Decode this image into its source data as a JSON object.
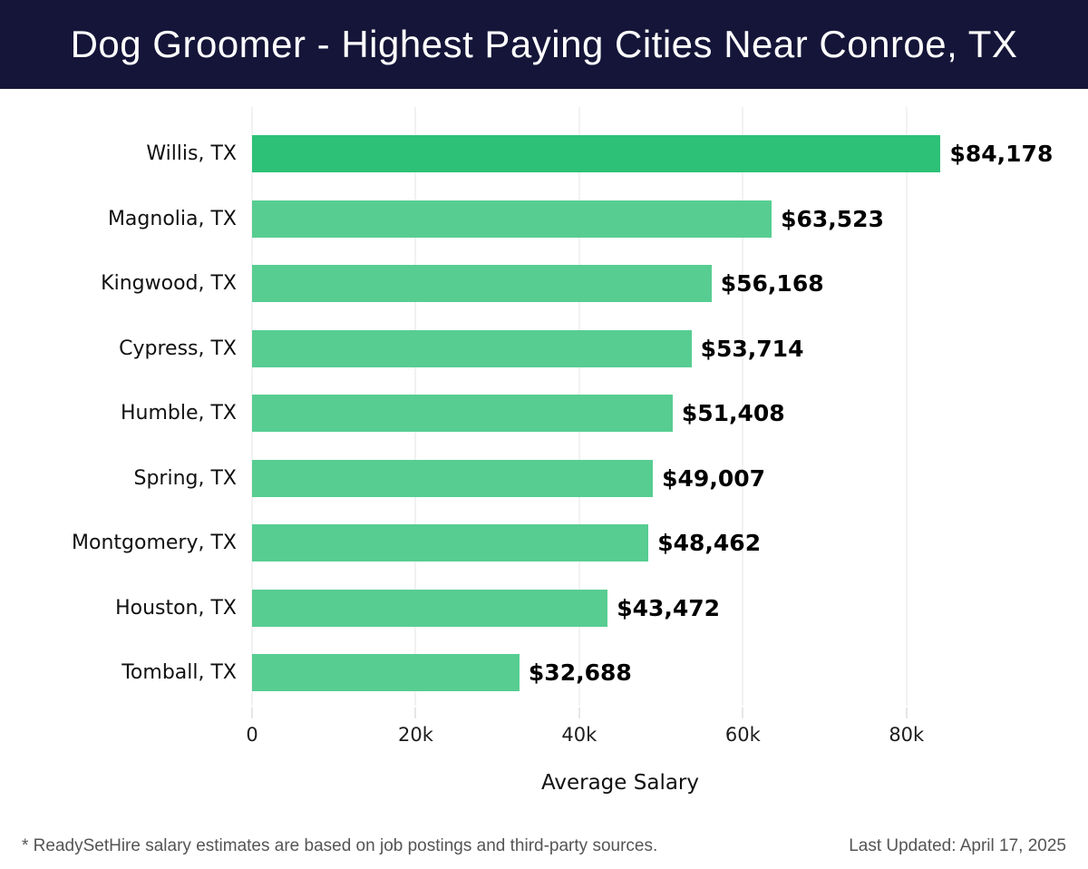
{
  "header": {
    "title": "Dog Groomer - Highest Paying Cities Near Conroe, TX"
  },
  "chart_data": {
    "type": "bar",
    "orientation": "horizontal",
    "title": "Dog Groomer - Highest Paying Cities Near Conroe, TX",
    "categories": [
      "Willis, TX",
      "Magnolia, TX",
      "Kingwood, TX",
      "Cypress, TX",
      "Humble, TX",
      "Spring, TX",
      "Montgomery, TX",
      "Houston, TX",
      "Tomball, TX"
    ],
    "values": [
      84178,
      63523,
      56168,
      53714,
      51408,
      49007,
      48462,
      43472,
      32688
    ],
    "value_labels": [
      "$84,178",
      "$63,523",
      "$56,168",
      "$53,714",
      "$51,408",
      "$49,007",
      "$48,462",
      "$43,472",
      "$32,688"
    ],
    "xlabel": "Average Salary",
    "xlim": [
      0,
      90000
    ],
    "xticks": [
      {
        "value": 0,
        "label": "0"
      },
      {
        "value": 20000,
        "label": "20k"
      },
      {
        "value": 40000,
        "label": "40k"
      },
      {
        "value": 60000,
        "label": "60k"
      },
      {
        "value": 80000,
        "label": "80k"
      }
    ],
    "grid": true,
    "legend": false,
    "colors": {
      "highlight_bar": "#2dc177",
      "bar": "#57cd92",
      "gridline": "#e4e4e4",
      "header_bg": "#151539"
    }
  },
  "footer": {
    "note": "* ReadySetHire salary estimates are based on job postings and third-party sources.",
    "last_updated": "Last Updated: April 17, 2025"
  }
}
